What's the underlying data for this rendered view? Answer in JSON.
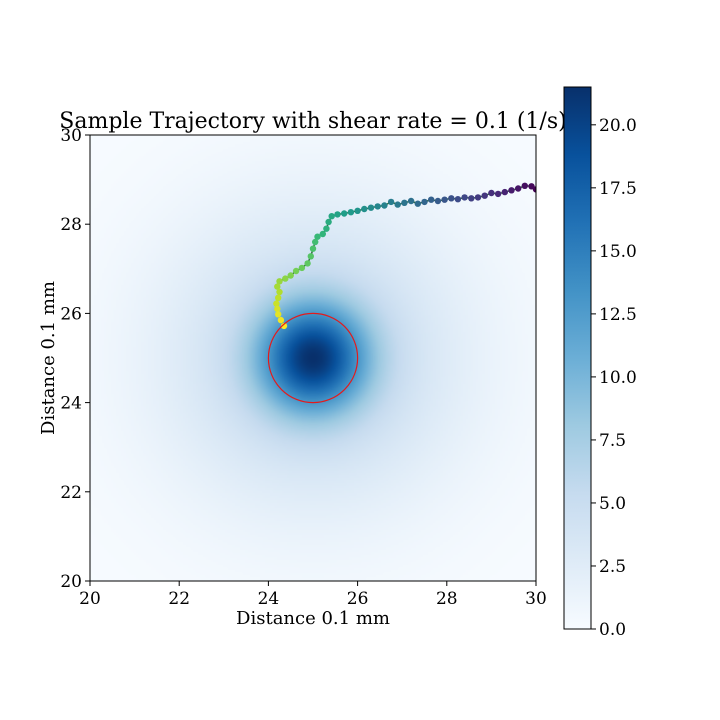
{
  "chart_data": {
    "type": "heatmap",
    "title": "Sample Trajectory with shear rate = 0.1 (1/s)",
    "xlabel": "Distance 0.1 mm",
    "ylabel": "Distance 0.1 mm",
    "xlim": [
      20,
      30
    ],
    "ylim": [
      20,
      30
    ],
    "xticks": [
      "20",
      "22",
      "24",
      "26",
      "28",
      "30"
    ],
    "yticks": [
      "20",
      "22",
      "24",
      "26",
      "28",
      "30"
    ],
    "grid": false,
    "colormap": "Blues",
    "field": {
      "center": [
        25,
        25
      ],
      "peak": 21.5,
      "min": 0.0
    },
    "colorbar": {
      "range": [
        0.0,
        21.5
      ],
      "ticks": [
        "0.0",
        "2.5",
        "5.0",
        "7.5",
        "10.0",
        "12.5",
        "15.0",
        "17.5",
        "20.0"
      ],
      "placement": "right"
    },
    "circle": {
      "center": [
        25,
        25
      ],
      "radius": 1.0,
      "color": "#e31a1c"
    },
    "trajectory": {
      "colormap": "viridis",
      "line_color": "#2f6b3a",
      "points": [
        [
          30.0,
          28.78
        ],
        [
          29.9,
          28.85
        ],
        [
          29.75,
          28.86
        ],
        [
          29.6,
          28.8
        ],
        [
          29.45,
          28.76
        ],
        [
          29.3,
          28.72
        ],
        [
          29.15,
          28.68
        ],
        [
          29.0,
          28.7
        ],
        [
          28.85,
          28.64
        ],
        [
          28.7,
          28.6
        ],
        [
          28.55,
          28.58
        ],
        [
          28.4,
          28.6
        ],
        [
          28.25,
          28.56
        ],
        [
          28.1,
          28.58
        ],
        [
          27.95,
          28.55
        ],
        [
          27.8,
          28.52
        ],
        [
          27.65,
          28.55
        ],
        [
          27.5,
          28.5
        ],
        [
          27.35,
          28.46
        ],
        [
          27.2,
          28.52
        ],
        [
          27.05,
          28.48
        ],
        [
          26.9,
          28.44
        ],
        [
          26.75,
          28.5
        ],
        [
          26.6,
          28.42
        ],
        [
          26.45,
          28.4
        ],
        [
          26.3,
          28.37
        ],
        [
          26.15,
          28.34
        ],
        [
          26.0,
          28.3
        ],
        [
          25.85,
          28.27
        ],
        [
          25.7,
          28.24
        ],
        [
          25.55,
          28.22
        ],
        [
          25.42,
          28.18
        ],
        [
          25.35,
          28.05
        ],
        [
          25.3,
          27.9
        ],
        [
          25.22,
          27.78
        ],
        [
          25.1,
          27.72
        ],
        [
          25.05,
          27.6
        ],
        [
          25.0,
          27.45
        ],
        [
          24.95,
          27.28
        ],
        [
          24.88,
          27.12
        ],
        [
          24.75,
          27.02
        ],
        [
          24.62,
          26.95
        ],
        [
          24.5,
          26.85
        ],
        [
          24.38,
          26.78
        ],
        [
          24.25,
          26.72
        ],
        [
          24.2,
          26.6
        ],
        [
          24.25,
          26.48
        ],
        [
          24.22,
          26.35
        ],
        [
          24.18,
          26.22
        ],
        [
          24.2,
          26.1
        ],
        [
          24.22,
          25.98
        ],
        [
          24.28,
          25.85
        ],
        [
          24.35,
          25.72
        ]
      ]
    }
  }
}
